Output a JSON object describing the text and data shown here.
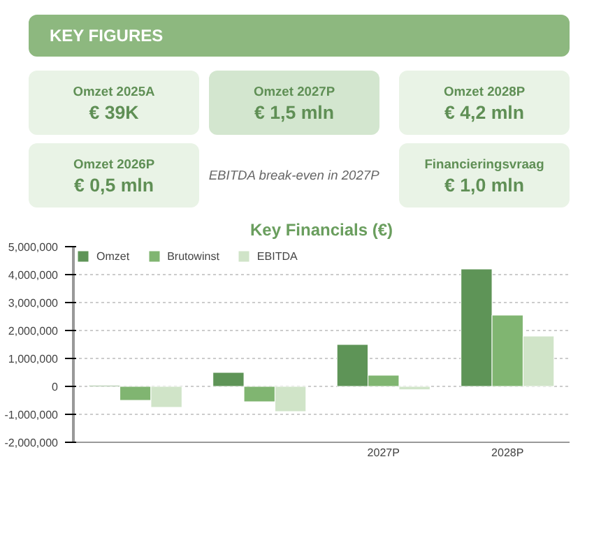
{
  "chart_data": [
    {
      "type": "other",
      "title": "KEY FIGURES",
      "annotations": [
        "Omzet 2025A",
        "€ 39K",
        "Omzet 2027P",
        "€ 1,5 mln",
        "Omzet 2028P",
        "€ 4,2 mln",
        "Omzet 2026P",
        "€ 0,5 mln",
        "EBITDA break-even in 2027P",
        "Financieringsvraag",
        "€ 1,0 mln"
      ]
    },
    {
      "type": "bar",
      "title": "Key Financials (€)",
      "categories": [
        null,
        null,
        "2027P",
        "2028P"
      ],
      "series": [
        {
          "name": "Omzet",
          "color": "#5e9457",
          "values": [
            40000,
            500000,
            1500000,
            4200000
          ]
        },
        {
          "name": "Brutowinst",
          "color": "#80b571",
          "values": [
            -500000,
            -550000,
            400000,
            2550000
          ]
        },
        {
          "name": "EBITDA",
          "color": "#d0e4c8",
          "values": [
            -750000,
            -900000,
            -120000,
            1800000
          ]
        }
      ],
      "ylim": [
        -2000000,
        5000000
      ],
      "yticks": [
        {
          "value": -2000000,
          "label": "-2,000,000"
        },
        {
          "value": -1000000,
          "label": "-1,000,000"
        },
        0,
        {
          "value": 1000000,
          "label": "1,000,000"
        },
        {
          "value": 2000000,
          "label": "2,000,000"
        },
        {
          "value": 3000000,
          "label": "3,000,000"
        },
        {
          "value": 4000000,
          "label": "4,000,000"
        },
        {
          "value": 5000000,
          "label": "5,000,000"
        }
      ],
      "grid": "y",
      "legend": "top left"
    }
  ]
}
